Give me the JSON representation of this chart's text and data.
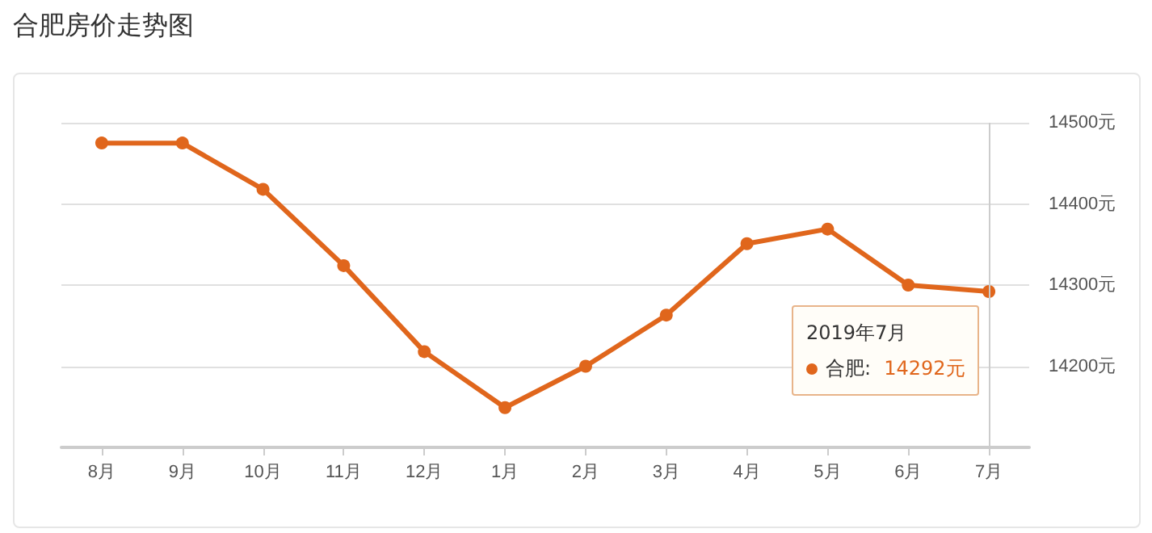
{
  "chart_data": {
    "type": "line",
    "title": "合肥房价走势图",
    "categories": [
      "8月",
      "9月",
      "10月",
      "11月",
      "12月",
      "1月",
      "2月",
      "3月",
      "4月",
      "5月",
      "6月",
      "7月"
    ],
    "series": [
      {
        "name": "合肥:",
        "color": "#e0661c",
        "values": [
          14475,
          14475,
          14418,
          14324,
          14218,
          14149,
          14200,
          14263,
          14351,
          14369,
          14300,
          14292
        ],
        "value_labels": [
          null,
          null,
          null,
          null,
          null,
          null,
          null,
          null,
          null,
          null,
          null,
          "14292元"
        ]
      }
    ],
    "annotations": [
      "2019年7月"
    ],
    "ref_lines": [
      {
        "axis": "x",
        "value": "7月",
        "color": "#cccccc"
      }
    ],
    "ylim": [
      14100,
      14500
    ],
    "yticks": [
      {
        "value": 14200,
        "label": "14200元"
      },
      {
        "value": 14300,
        "label": "14300元"
      },
      {
        "value": 14400,
        "label": "14400元"
      },
      {
        "value": 14500,
        "label": "14500元"
      }
    ],
    "grid": "y",
    "legend": "bottom right",
    "marker": "circle",
    "line_style": "solid"
  }
}
